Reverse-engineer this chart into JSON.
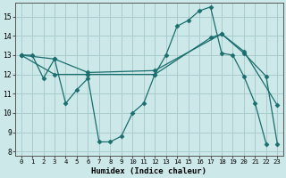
{
  "xlabel": "Humidex (Indice chaleur)",
  "xlim": [
    -0.5,
    23.5
  ],
  "ylim": [
    7.8,
    15.7
  ],
  "yticks": [
    8,
    9,
    10,
    11,
    12,
    13,
    14,
    15
  ],
  "xticks": [
    0,
    1,
    2,
    3,
    4,
    5,
    6,
    7,
    8,
    9,
    10,
    11,
    12,
    13,
    14,
    15,
    16,
    17,
    18,
    19,
    20,
    21,
    22,
    23
  ],
  "bg_color": "#cce8e8",
  "grid_color": "#aacccc",
  "line_color": "#1a6e6e",
  "series": [
    {
      "x": [
        0,
        1,
        2,
        3,
        4,
        5,
        6,
        7,
        8,
        9,
        10,
        11,
        12,
        13,
        14,
        15,
        16,
        17,
        18,
        19,
        20,
        21,
        22,
        23
      ],
      "y": [
        13,
        13,
        11.8,
        12.8,
        10.5,
        11.2,
        11.8,
        8.5,
        8.5,
        8.8,
        10.0,
        10.5,
        12.0,
        13.0,
        14.5,
        14.8,
        15.3,
        15.5,
        13.1,
        13.0,
        11.9,
        10.5,
        8.4,
        null
      ]
    },
    {
      "x": [
        0,
        3,
        6,
        12,
        18,
        20,
        23
      ],
      "y": [
        13,
        12.8,
        12.1,
        12.2,
        14.1,
        13.2,
        10.4
      ]
    },
    {
      "x": [
        0,
        3,
        6,
        12,
        17,
        18,
        20,
        22,
        23
      ],
      "y": [
        13,
        12.0,
        12.0,
        12.0,
        13.9,
        14.1,
        13.1,
        11.9,
        8.4
      ]
    }
  ]
}
